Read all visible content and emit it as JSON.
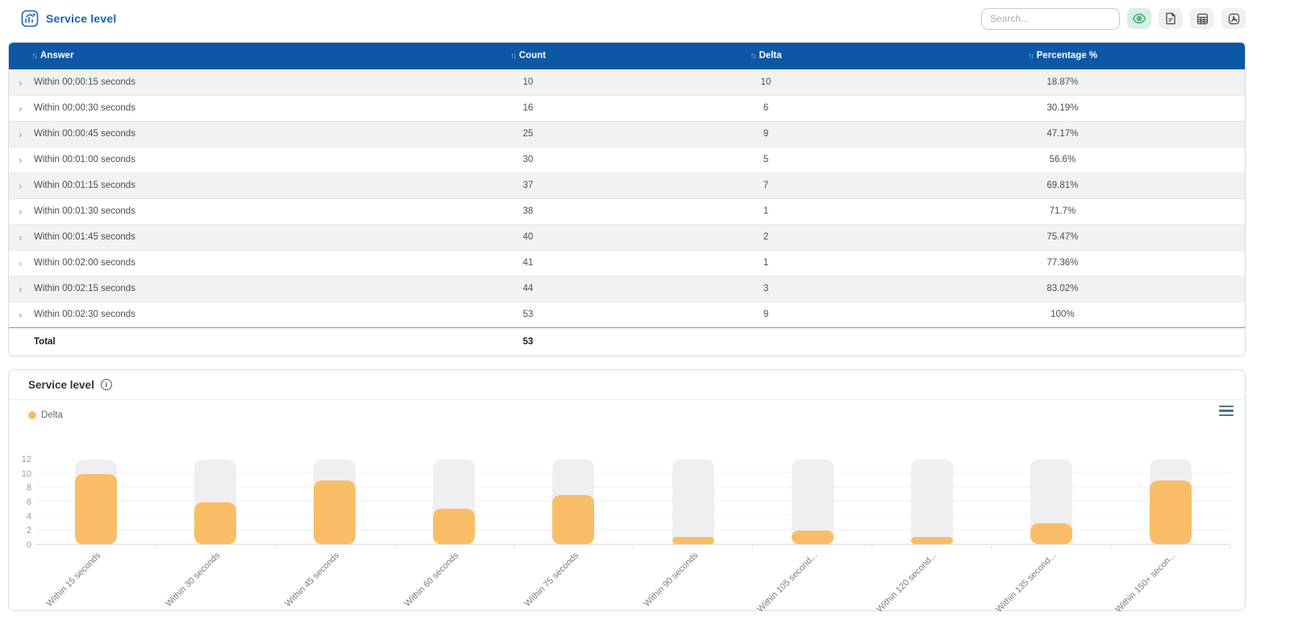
{
  "page": {
    "title": "Service level"
  },
  "toolbar": {
    "search_placeholder": "Search...",
    "icons": [
      "chart-badge-icon",
      "eye-icon",
      "file-doc-icon",
      "table-grid-icon",
      "pdf-icon"
    ]
  },
  "table": {
    "columns": [
      "Answer",
      "Count",
      "Delta",
      "Percentage %"
    ],
    "rows": [
      {
        "answer": "Within 00:00:15 seconds",
        "count": "10",
        "delta": "10",
        "percentage": "18.87%"
      },
      {
        "answer": "Within 00:00:30 seconds",
        "count": "16",
        "delta": "6",
        "percentage": "30.19%"
      },
      {
        "answer": "Within 00:00:45 seconds",
        "count": "25",
        "delta": "9",
        "percentage": "47.17%"
      },
      {
        "answer": "Within 00:01:00 seconds",
        "count": "30",
        "delta": "5",
        "percentage": "56.6%"
      },
      {
        "answer": "Within 00:01:15 seconds",
        "count": "37",
        "delta": "7",
        "percentage": "69.81%"
      },
      {
        "answer": "Within 00:01:30 seconds",
        "count": "38",
        "delta": "1",
        "percentage": "71.7%"
      },
      {
        "answer": "Within 00:01:45 seconds",
        "count": "40",
        "delta": "2",
        "percentage": "75.47%"
      },
      {
        "answer": "Within 00:02:00 seconds",
        "count": "41",
        "delta": "1",
        "percentage": "77.36%"
      },
      {
        "answer": "Within 00:02:15 seconds",
        "count": "44",
        "delta": "3",
        "percentage": "83.02%"
      },
      {
        "answer": "Within 00:02:30 seconds",
        "count": "53",
        "delta": "9",
        "percentage": "100%"
      }
    ],
    "total_label": "Total",
    "total_count": "53"
  },
  "chart": {
    "title": "Service level",
    "legend_label": "Delta",
    "yticks": [
      "12",
      "10",
      "8",
      "6",
      "4",
      "2",
      "0"
    ],
    "menu_icon": "hamburger-menu-icon",
    "info_icon": "info-icon"
  },
  "chart_data": {
    "type": "bar",
    "title": "Service level",
    "categories": [
      "Within 15 seconds",
      "Within 30 seconds",
      "Within 45 seconds",
      "Within 60 seconds",
      "Within 75 seconds",
      "Within 90 seconds",
      "Within 105 second...",
      "Within 120 second...",
      "Within 135 second...",
      "Within 150+ secon..."
    ],
    "series": [
      {
        "name": "Delta",
        "values": [
          10,
          6,
          9,
          5,
          7,
          1,
          2,
          1,
          3,
          9
        ]
      }
    ],
    "xlabel": "",
    "ylabel": "",
    "ylim": [
      0,
      12
    ],
    "grid": true,
    "legend_position": "top-left",
    "x_label_rotation": -45
  },
  "colors": {
    "header_blue": "#0e57a5",
    "title_blue": "#1266bd",
    "bar_orange": "#f9bd68",
    "bar_track": "#efeff2",
    "eye_button_bg": "#d8efe2",
    "eye_icon": "#43a87a"
  }
}
